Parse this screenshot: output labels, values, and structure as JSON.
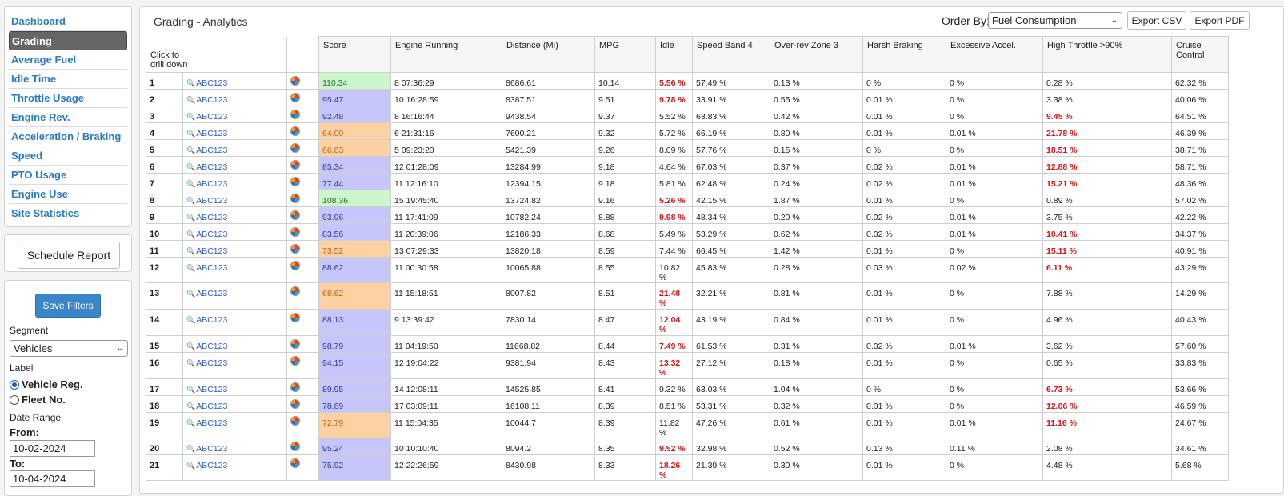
{
  "sidebar": {
    "items": [
      {
        "label": "Dashboard",
        "active": false
      },
      {
        "label": "Grading",
        "active": true
      },
      {
        "label": "Average Fuel",
        "active": false
      },
      {
        "label": "Idle Time",
        "active": false
      },
      {
        "label": "Throttle Usage",
        "active": false
      },
      {
        "label": "Engine Rev.",
        "active": false
      },
      {
        "label": "Acceleration / Braking",
        "active": false
      },
      {
        "label": "Speed",
        "active": false
      },
      {
        "label": "PTO Usage",
        "active": false
      },
      {
        "label": "Engine Use",
        "active": false
      },
      {
        "label": "Site Statistics",
        "active": false
      }
    ],
    "schedule_label": "Schedule Report"
  },
  "filters": {
    "save_label": "Save Filters",
    "segment_label": "Segment",
    "segment_value": "Vehicles",
    "label_label": "Label",
    "label_options": [
      {
        "label": "Vehicle Reg.",
        "selected": true
      },
      {
        "label": "Fleet No.",
        "selected": false
      }
    ],
    "date_range_label": "Date Range",
    "from_label": "From:",
    "from_value": "10-02-2024",
    "to_label": "To:",
    "to_value": "10-04-2024"
  },
  "header": {
    "title": "Grading - Analytics",
    "order_by_label": "Order By:",
    "order_by_value": "Fuel Consumption",
    "export_csv": "Export CSV",
    "export_pdf": "Export PDF"
  },
  "table": {
    "drill_label": "Click to drill down",
    "columns": [
      "Score",
      "Engine Running",
      "Distance (Mi)",
      "MPG",
      "Idle",
      "Speed Band 4",
      "Over-rev Zone 3",
      "Harsh Braking",
      "Excessive Accel.",
      "High Throttle >90%",
      "Cruise Control"
    ],
    "rows": [
      {
        "n": "1",
        "vehicle": "ABC123",
        "score": "110.34",
        "band": "green",
        "engine": "8 07:36:29",
        "dist": "8686.61",
        "mpg": "10.14",
        "idle": "5.56 %",
        "idle_red": true,
        "speed": "57.49 %",
        "overrev": "0.13 %",
        "braking": "0 %",
        "accel": "0 %",
        "throttle": "0.28 %",
        "throttle_red": false,
        "cruise": "62.32 %"
      },
      {
        "n": "2",
        "vehicle": "ABC123",
        "score": "95.47",
        "band": "blue",
        "engine": "10 16:28:59",
        "dist": "8387.51",
        "mpg": "9.51",
        "idle": "9.78 %",
        "idle_red": true,
        "speed": "33.91 %",
        "overrev": "0.55 %",
        "braking": "0.01 %",
        "accel": "0 %",
        "throttle": "3.38 %",
        "throttle_red": false,
        "cruise": "40.06 %"
      },
      {
        "n": "3",
        "vehicle": "ABC123",
        "score": "92.48",
        "band": "blue",
        "engine": "8 16:16:44",
        "dist": "9438.54",
        "mpg": "9.37",
        "idle": "5.52 %",
        "idle_red": false,
        "speed": "63.83 %",
        "overrev": "0.42 %",
        "braking": "0.01 %",
        "accel": "0 %",
        "throttle": "9.45 %",
        "throttle_red": true,
        "cruise": "64.51 %"
      },
      {
        "n": "4",
        "vehicle": "ABC123",
        "score": "64.00",
        "band": "orange",
        "engine": "6 21:31:16",
        "dist": "7600.21",
        "mpg": "9.32",
        "idle": "5.72 %",
        "idle_red": false,
        "speed": "66.19 %",
        "overrev": "0.80 %",
        "braking": "0.01 %",
        "accel": "0.01 %",
        "throttle": "21.78 %",
        "throttle_red": true,
        "cruise": "46.39 %"
      },
      {
        "n": "5",
        "vehicle": "ABC123",
        "score": "66.63",
        "band": "orange",
        "engine": "5 09:23:20",
        "dist": "5421.39",
        "mpg": "9.26",
        "idle": "8.09 %",
        "idle_red": false,
        "speed": "57.76 %",
        "overrev": "0.15 %",
        "braking": "0 %",
        "accel": "0 %",
        "throttle": "18.51 %",
        "throttle_red": true,
        "cruise": "38.71 %"
      },
      {
        "n": "6",
        "vehicle": "ABC123",
        "score": "85.34",
        "band": "blue",
        "engine": "12 01:28:09",
        "dist": "13284.99",
        "mpg": "9.18",
        "idle": "4.64 %",
        "idle_red": false,
        "speed": "67.03 %",
        "overrev": "0.37 %",
        "braking": "0.02 %",
        "accel": "0.01 %",
        "throttle": "12.88 %",
        "throttle_red": true,
        "cruise": "58.71 %"
      },
      {
        "n": "7",
        "vehicle": "ABC123",
        "score": "77.44",
        "band": "blue",
        "engine": "11 12:16:10",
        "dist": "12394.15",
        "mpg": "9.18",
        "idle": "5.81 %",
        "idle_red": false,
        "speed": "62.48 %",
        "overrev": "0.24 %",
        "braking": "0.02 %",
        "accel": "0.01 %",
        "throttle": "15.21 %",
        "throttle_red": true,
        "cruise": "48.36 %"
      },
      {
        "n": "8",
        "vehicle": "ABC123",
        "score": "108.36",
        "band": "green",
        "engine": "15 19:45:40",
        "dist": "13724.82",
        "mpg": "9.16",
        "idle": "5.26 %",
        "idle_red": true,
        "speed": "42.15 %",
        "overrev": "1.87 %",
        "braking": "0.01 %",
        "accel": "0 %",
        "throttle": "0.89 %",
        "throttle_red": false,
        "cruise": "57.02 %"
      },
      {
        "n": "9",
        "vehicle": "ABC123",
        "score": "93.96",
        "band": "blue",
        "engine": "11 17:41:09",
        "dist": "10782.24",
        "mpg": "8.88",
        "idle": "9.98 %",
        "idle_red": true,
        "speed": "48.34 %",
        "overrev": "0.20 %",
        "braking": "0.02 %",
        "accel": "0.01 %",
        "throttle": "3.75 %",
        "throttle_red": false,
        "cruise": "42.22 %"
      },
      {
        "n": "10",
        "vehicle": "ABC123",
        "score": "83.56",
        "band": "blue",
        "engine": "11 20:39:06",
        "dist": "12186.33",
        "mpg": "8.68",
        "idle": "5.49 %",
        "idle_red": false,
        "speed": "53.29 %",
        "overrev": "0.62 %",
        "braking": "0.02 %",
        "accel": "0.01 %",
        "throttle": "10.41 %",
        "throttle_red": true,
        "cruise": "34.37 %"
      },
      {
        "n": "11",
        "vehicle": "ABC123",
        "score": "73.52",
        "band": "orange",
        "engine": "13 07:29:33",
        "dist": "13820.18",
        "mpg": "8.59",
        "idle": "7.44 %",
        "idle_red": false,
        "speed": "66.45 %",
        "overrev": "1.42 %",
        "braking": "0.01 %",
        "accel": "0 %",
        "throttle": "15.11 %",
        "throttle_red": true,
        "cruise": "40.91 %"
      },
      {
        "n": "12",
        "vehicle": "ABC123",
        "score": "88.62",
        "band": "blue",
        "engine": "11 00:30:58",
        "dist": "10065.88",
        "mpg": "8.55",
        "idle": "10.82 %",
        "idle_red": false,
        "speed": "45.83 %",
        "overrev": "0.28 %",
        "braking": "0.03 %",
        "accel": "0.02 %",
        "throttle": "6.11 %",
        "throttle_red": true,
        "cruise": "43.29 %"
      },
      {
        "n": "13",
        "vehicle": "ABC123",
        "score": "68.62",
        "band": "orange",
        "engine": "11 15:18:51",
        "dist": "8007.82",
        "mpg": "8.51",
        "idle": "21.48 %",
        "idle_red": true,
        "speed": "32.21 %",
        "overrev": "0.81 %",
        "braking": "0.01 %",
        "accel": "0 %",
        "throttle": "7.88 %",
        "throttle_red": false,
        "cruise": "14.29 %"
      },
      {
        "n": "14",
        "vehicle": "ABC123",
        "score": "88.13",
        "band": "blue",
        "engine": "9 13:39:42",
        "dist": "7830.14",
        "mpg": "8.47",
        "idle": "12.04 %",
        "idle_red": true,
        "speed": "43.19 %",
        "overrev": "0.84 %",
        "braking": "0.01 %",
        "accel": "0 %",
        "throttle": "4.96 %",
        "throttle_red": false,
        "cruise": "40.43 %"
      },
      {
        "n": "15",
        "vehicle": "ABC123",
        "score": "98.79",
        "band": "blue",
        "engine": "11 04:19:50",
        "dist": "11668.82",
        "mpg": "8.44",
        "idle": "7.49 %",
        "idle_red": true,
        "speed": "61.53 %",
        "overrev": "0.31 %",
        "braking": "0.02 %",
        "accel": "0.01 %",
        "throttle": "3.62 %",
        "throttle_red": false,
        "cruise": "57.60 %"
      },
      {
        "n": "16",
        "vehicle": "ABC123",
        "score": "94.15",
        "band": "blue",
        "engine": "12 19:04:22",
        "dist": "9381.94",
        "mpg": "8.43",
        "idle": "13.32 %",
        "idle_red": true,
        "speed": "27.12 %",
        "overrev": "0.18 %",
        "braking": "0.01 %",
        "accel": "0 %",
        "throttle": "0.65 %",
        "throttle_red": false,
        "cruise": "33.83 %"
      },
      {
        "n": "17",
        "vehicle": "ABC123",
        "score": "89.95",
        "band": "blue",
        "engine": "14 12:08:11",
        "dist": "14525.85",
        "mpg": "8.41",
        "idle": "9.32 %",
        "idle_red": false,
        "speed": "63.03 %",
        "overrev": "1.04 %",
        "braking": "0 %",
        "accel": "0 %",
        "throttle": "6.73 %",
        "throttle_red": true,
        "cruise": "53.66 %"
      },
      {
        "n": "18",
        "vehicle": "ABC123",
        "score": "78.69",
        "band": "blue",
        "engine": "17 03:09:11",
        "dist": "16108.11",
        "mpg": "8.39",
        "idle": "8.51 %",
        "idle_red": false,
        "speed": "53.31 %",
        "overrev": "0.32 %",
        "braking": "0.01 %",
        "accel": "0 %",
        "throttle": "12.06 %",
        "throttle_red": true,
        "cruise": "46.59 %"
      },
      {
        "n": "19",
        "vehicle": "ABC123",
        "score": "72.79",
        "band": "orange",
        "engine": "11 15:04:35",
        "dist": "10044.7",
        "mpg": "8.39",
        "idle": "11.82 %",
        "idle_red": false,
        "speed": "47.26 %",
        "overrev": "0.61 %",
        "braking": "0.01 %",
        "accel": "0.01 %",
        "throttle": "11.16 %",
        "throttle_red": true,
        "cruise": "24.67 %"
      },
      {
        "n": "20",
        "vehicle": "ABC123",
        "score": "95.24",
        "band": "blue",
        "engine": "10 10:10:40",
        "dist": "8094.2",
        "mpg": "8.35",
        "idle": "9.52 %",
        "idle_red": true,
        "speed": "32.98 %",
        "overrev": "0.52 %",
        "braking": "0.13 %",
        "accel": "0.11 %",
        "throttle": "2.08 %",
        "throttle_red": false,
        "cruise": "34.61 %"
      },
      {
        "n": "21",
        "vehicle": "ABC123",
        "score": "75.92",
        "band": "blue",
        "engine": "12 22:26:59",
        "dist": "8430.98",
        "mpg": "8.33",
        "idle": "18.26 %",
        "idle_red": true,
        "speed": "21.39 %",
        "overrev": "0.30 %",
        "braking": "0.01 %",
        "accel": "0 %",
        "throttle": "4.48 %",
        "throttle_red": false,
        "cruise": "5.68 %"
      }
    ]
  }
}
